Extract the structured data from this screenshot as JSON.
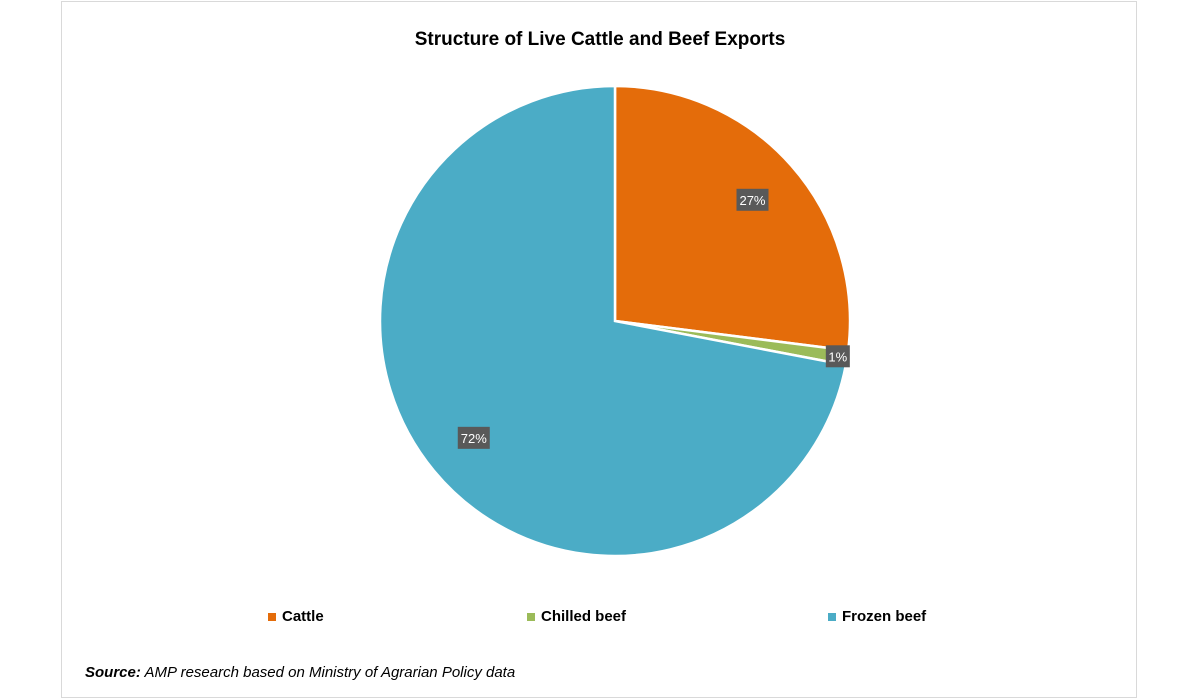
{
  "chart_data": {
    "type": "pie",
    "title": "Structure of Live Cattle and Beef Exports",
    "categories": [
      "Cattle",
      "Chilled beef",
      "Frozen beef"
    ],
    "values": [
      27,
      1,
      72
    ],
    "data_labels": [
      "27%",
      "1%",
      "72%"
    ],
    "colors": [
      "#E46C0A",
      "#9BBB59",
      "#4BACC6"
    ],
    "legend_position": "bottom",
    "source_label": "Source:",
    "source_text": " AMP research based on Ministry of Agrarian Policy data"
  }
}
